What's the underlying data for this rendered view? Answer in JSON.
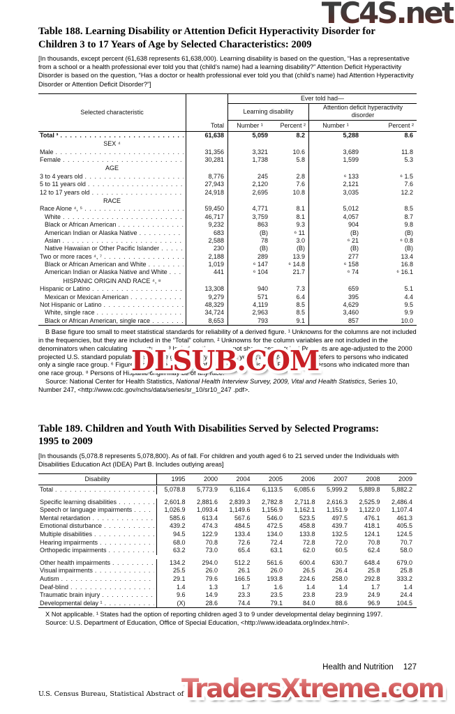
{
  "watermarks": {
    "top": "TC4S.net",
    "middle": "DLSUB.COM",
    "bottom": "TradersXtreme.com",
    "colors": {
      "middle_red": "#c81f25",
      "bottom_red": "#cf5454",
      "top_dark": "#3d3d3d"
    }
  },
  "table188": {
    "title_line1": "Table 188. Learning Disability or Attention Deficit Hyperactivity Disorder for",
    "title_line2": "Children 3 to 17 Years of Age by Selected Characteristics: 2009",
    "intro": "[In thousands, except percent (61,638 represents 61,638,000). Learning disability is based on the question, “Has a representative from a school or a health professional ever told you that (child’s name) had a learning disability?” Attention Deficit Hyperactivity Disorder is based on the question, “Has a doctor or health professional ever told you that (child’s name) had Attention Hyperactivity Disorder or Attention Deficit Disorder?”]",
    "header": {
      "characteristic": "Selected characteristic",
      "total": "Total",
      "group": "Ever told had—",
      "ld": "Learning disability",
      "adhd": "Attention deficit hyperactivity disorder",
      "number": "Number ¹",
      "percent": "Percent ²"
    },
    "rows": [
      {
        "type": "data",
        "bold": true,
        "indent": 0,
        "label": "Total ³",
        "cells": [
          "61,638",
          "5,059",
          "8.2",
          "5,288",
          "8.6"
        ]
      },
      {
        "type": "section",
        "label": "SEX ⁴"
      },
      {
        "type": "data",
        "indent": 0,
        "label": "Male",
        "cells": [
          "31,356",
          "3,321",
          "10.6",
          "3,689",
          "11.8"
        ]
      },
      {
        "type": "data",
        "indent": 0,
        "label": "Female",
        "cells": [
          "30,281",
          "1,738",
          "5.8",
          "1,599",
          "5.3"
        ]
      },
      {
        "type": "section",
        "label": "AGE"
      },
      {
        "type": "data",
        "indent": 0,
        "label": "3 to 4 years old",
        "cells": [
          "8,776",
          "245",
          "2.8",
          "⁶ 133",
          "⁶ 1.5"
        ]
      },
      {
        "type": "data",
        "indent": 0,
        "label": "5 to 11 years old",
        "cells": [
          "27,943",
          "2,120",
          "7.6",
          "2,121",
          "7.6"
        ]
      },
      {
        "type": "data",
        "indent": 0,
        "label": "12 to 17 years old",
        "cells": [
          "24,918",
          "2,695",
          "10.8",
          "3,035",
          "12.2"
        ]
      },
      {
        "type": "section",
        "label": "RACE"
      },
      {
        "type": "data",
        "indent": 0,
        "label": "Race Alone ⁴, ⁵",
        "cells": [
          "59,450",
          "4,771",
          "8.1",
          "5,012",
          "8.5"
        ]
      },
      {
        "type": "data",
        "indent": 1,
        "label": "White",
        "cells": [
          "46,717",
          "3,759",
          "8.1",
          "4,057",
          "8.7"
        ]
      },
      {
        "type": "data",
        "indent": 1,
        "label": "Black or African American",
        "cells": [
          "9,232",
          "863",
          "9.3",
          "904",
          "9.8"
        ]
      },
      {
        "type": "data",
        "indent": 1,
        "label": "American Indian or Alaska Native",
        "cells": [
          "683",
          "(B)",
          "⁶ 11",
          "(B)",
          "(B)"
        ]
      },
      {
        "type": "data",
        "indent": 1,
        "label": "Asian",
        "cells": [
          "2,588",
          "78",
          "3.0",
          "⁶ 21",
          "⁶ 0.8"
        ]
      },
      {
        "type": "data",
        "indent": 1,
        "label": "Native Hawaiian or Other Pacific Islander",
        "cells": [
          "230",
          "(B)",
          "(B)",
          "(B)",
          "(B)"
        ]
      },
      {
        "type": "data",
        "indent": 0,
        "label": "Two or more races ⁴, ⁷",
        "cells": [
          "2,188",
          "289",
          "13.9",
          "277",
          "13.4"
        ]
      },
      {
        "type": "data",
        "indent": 1,
        "label": "Black or African American and White",
        "cells": [
          "1,019",
          "⁶ 147",
          "⁶ 14.8",
          "⁶ 158",
          "16.8"
        ]
      },
      {
        "type": "data",
        "indent": 1,
        "label": "American Indian or Alaska Native and White",
        "cells": [
          "441",
          "⁶ 104",
          "21.7",
          "⁶ 74",
          "⁶ 16.1"
        ]
      },
      {
        "type": "section",
        "label": "HISPANIC ORIGIN AND RACE ⁴, ⁸"
      },
      {
        "type": "data",
        "indent": 0,
        "label": "Hispanic or Latino",
        "cells": [
          "13,308",
          "940",
          "7.3",
          "659",
          "5.1"
        ]
      },
      {
        "type": "data",
        "indent": 1,
        "label": "Mexican or Mexican American",
        "cells": [
          "9,279",
          "571",
          "6.4",
          "395",
          "4.4"
        ]
      },
      {
        "type": "data",
        "indent": 0,
        "label": "Not Hispanic or Latino",
        "cells": [
          "48,329",
          "4,119",
          "8.5",
          "4,629",
          "9.5"
        ]
      },
      {
        "type": "data",
        "indent": 1,
        "label": "White, single race",
        "cells": [
          "34,724",
          "2,963",
          "8.5",
          "3,460",
          "9.9"
        ]
      },
      {
        "type": "data",
        "indent": 1,
        "label": "Black or African American, single race",
        "cells": [
          "8,653",
          "793",
          "9.1",
          "857",
          "10.0"
        ]
      }
    ],
    "footnotes": "B Base figure too small to meet statistical standards for reliability of a derived figure. ¹ Unknowns for the columns are not included in the frequencies, but they are included in the “Total” column. ² Unknowns for the column variables are not included in the denominators when calculating percentages. ³ Includes other races not shown separately. ⁴ Percents are age-adjusted to the 2000 projected U.S. standard population using age groups 3–4 years, 5–11 years, and 12–17 years. ⁵ Refers to persons who indicated only a single race group. ⁶ Figures do not meet standard of reliability or precision. ⁷ Refers to all persons who indicated more than one race group. ⁸ Persons of Hispanic origin may be of any race.",
    "source_roman1": "Source: National Center for Health Statistics, ",
    "source_italic": "National Health Interview Survey, 2009, Vital and Health Statistics",
    "source_roman2": ", Series 10, Number 247, <http://www.cdc.gov/nchs/data/series/sr_10/sr10_247 .pdf>."
  },
  "table189": {
    "title_line1": "Table 189. Children and Youth With Disabilities Served by Selected Programs:",
    "title_line2": "1995 to 2009",
    "intro": "[In thousands (5,078.8 represents 5,078,800). As of fall. For children and youth aged 6 to 21 served under the Individuals with Disabilities Education Act (IDEA) Part B. Includes outlying areas]",
    "header": [
      "Disability",
      "1995",
      "2000",
      "2004",
      "2005",
      "2006",
      "2007",
      "2008",
      "2009"
    ],
    "rows": [
      {
        "bold": true,
        "totalgap": true,
        "label": "Total",
        "cells": [
          "5,078.8",
          "5,773.9",
          "6,116.4",
          "6,113.5",
          "6,085.6",
          "5,999.2",
          "5,889.8",
          "5,882.2"
        ]
      },
      {
        "label": "Specific learning disabilities",
        "cells": [
          "2,601.8",
          "2,881.6",
          "2,839.3",
          "2,782.8",
          "2,711.8",
          "2,616.3",
          "2,525.9",
          "2,486.4"
        ]
      },
      {
        "label": "Speech or language impairments",
        "cells": [
          "1,026.9",
          "1,093.4",
          "1,149.6",
          "1,156.9",
          "1,162.1",
          "1,151.9",
          "1,122.0",
          "1,107.4"
        ]
      },
      {
        "label": "Mental retardation",
        "cells": [
          "585.6",
          "613.4",
          "567.6",
          "546.0",
          "523.5",
          "497.5",
          "476.1",
          "461.3"
        ]
      },
      {
        "label": "Emotional disturbance",
        "cells": [
          "439.2",
          "474.3",
          "484.5",
          "472.5",
          "458.8",
          "439.7",
          "418.1",
          "405.5"
        ]
      },
      {
        "label": "Multiple disabilities",
        "cells": [
          "94.5",
          "122.9",
          "133.4",
          "134.0",
          "133.8",
          "132.5",
          "124.1",
          "124.5"
        ]
      },
      {
        "label": "Hearing impairments",
        "cells": [
          "68.0",
          "70.8",
          "72.6",
          "72.4",
          "72.8",
          "72.0",
          "70.8",
          "70.7"
        ]
      },
      {
        "label": "Orthopedic impairments",
        "cells": [
          "63.2",
          "73.0",
          "65.4",
          "63.1",
          "62.0",
          "60.5",
          "62.4",
          "58.0"
        ]
      },
      {
        "gap": true,
        "label": "Other health impairments",
        "cells": [
          "134.2",
          "294.0",
          "512.2",
          "561.6",
          "600.4",
          "630.7",
          "648.4",
          "679.0"
        ]
      },
      {
        "label": "Visual impairments",
        "cells": [
          "25.5",
          "26.0",
          "26.1",
          "26.0",
          "26.5",
          "26.4",
          "25.8",
          "25.8"
        ]
      },
      {
        "label": "Autism",
        "cells": [
          "29.1",
          "79.6",
          "166.5",
          "193.8",
          "224.6",
          "258.0",
          "292.8",
          "333.2"
        ]
      },
      {
        "label": "Deaf-blind",
        "cells": [
          "1.4",
          "1.3",
          "1.7",
          "1.6",
          "1.4",
          "1.4",
          "1.7",
          "1.4"
        ]
      },
      {
        "label": "Traumatic brain injury",
        "cells": [
          "9.6",
          "14.9",
          "23.3",
          "23.5",
          "23.8",
          "23.9",
          "24.9",
          "24.4"
        ]
      },
      {
        "label": "Developmental delay ¹",
        "cells": [
          "(X)",
          "28.6",
          "74.4",
          "79.1",
          "84.0",
          "88.6",
          "96.9",
          "104.5"
        ]
      }
    ],
    "footnotes": "X Not applicable. ¹ States had the option of reporting children aged 3 to 9 under developmental delay beginning 1997.",
    "source": "Source: U.S. Department of Education, Office of Special Education, <http://www.ideadata.org/index.html>."
  },
  "footer": {
    "section": "Health and Nutrition",
    "page": "127",
    "source_line": "U.S. Census Bureau, Statistical Abstract of the United States: 2012"
  }
}
